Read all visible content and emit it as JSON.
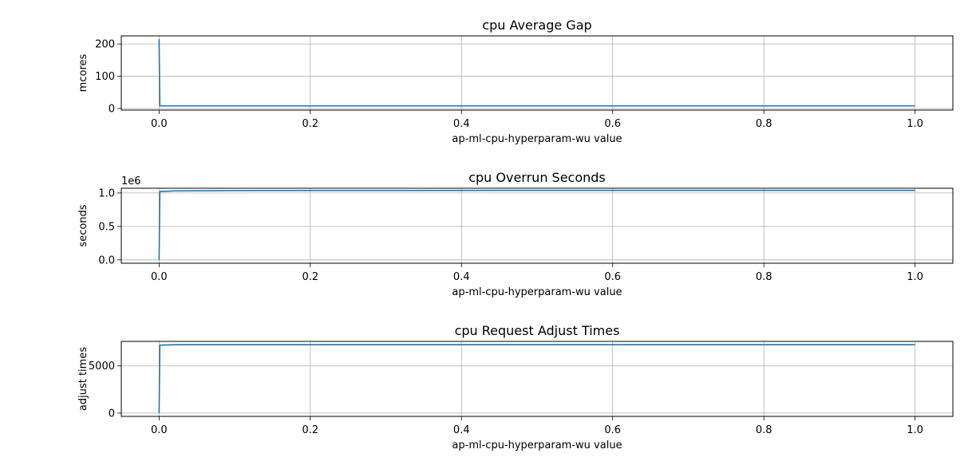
{
  "chart_data": [
    {
      "type": "line",
      "title": "cpu Average Gap",
      "xlabel": "ap-ml-cpu-hyperparam-wu value",
      "ylabel": "mcores",
      "offset_label": "",
      "xlim": [
        -0.05,
        1.05
      ],
      "ylim": [
        -5,
        225
      ],
      "xticks": [
        0.0,
        0.2,
        0.4,
        0.6,
        0.8,
        1.0
      ],
      "xtick_labels": [
        "0.0",
        "0.2",
        "0.4",
        "0.6",
        "0.8",
        "1.0"
      ],
      "yticks": [
        0,
        100,
        200
      ],
      "ytick_labels": [
        "0",
        "100",
        "200"
      ],
      "grid": true,
      "series": [
        {
          "x": [
            0.0,
            0.001,
            1.0
          ],
          "y": [
            215,
            8,
            8
          ],
          "color": "#1f77b4"
        }
      ]
    },
    {
      "type": "line",
      "title": "cpu Overrun Seconds",
      "xlabel": "ap-ml-cpu-hyperparam-wu value",
      "ylabel": "seconds",
      "offset_label": "1e6",
      "xlim": [
        -0.05,
        1.05
      ],
      "ylim": [
        -0.05,
        1.07
      ],
      "xticks": [
        0.0,
        0.2,
        0.4,
        0.6,
        0.8,
        1.0
      ],
      "xtick_labels": [
        "0.0",
        "0.2",
        "0.4",
        "0.6",
        "0.8",
        "1.0"
      ],
      "yticks": [
        0.0,
        0.5,
        1.0
      ],
      "ytick_labels": [
        "0.0",
        "0.5",
        "1.0"
      ],
      "grid": true,
      "series": [
        {
          "x": [
            0.0,
            0.001,
            0.02,
            0.1,
            0.3,
            0.6,
            1.0
          ],
          "y": [
            0.0,
            1.02,
            1.03,
            1.035,
            1.037,
            1.038,
            1.038
          ],
          "color": "#1f77b4"
        }
      ]
    },
    {
      "type": "line",
      "title": "cpu Request Adjust Times",
      "xlabel": "ap-ml-cpu-hyperparam-wu value",
      "ylabel": "adjust times",
      "offset_label": "",
      "xlim": [
        -0.05,
        1.05
      ],
      "ylim": [
        -350,
        7600
      ],
      "xticks": [
        0.0,
        0.2,
        0.4,
        0.6,
        0.8,
        1.0
      ],
      "xtick_labels": [
        "0.0",
        "0.2",
        "0.4",
        "0.6",
        "0.8",
        "1.0"
      ],
      "yticks": [
        0,
        5000
      ],
      "ytick_labels": [
        "0",
        "5000"
      ],
      "grid": true,
      "series": [
        {
          "x": [
            0.0,
            0.001,
            0.02,
            1.0
          ],
          "y": [
            0,
            7200,
            7250,
            7250
          ],
          "color": "#1f77b4"
        }
      ]
    }
  ]
}
